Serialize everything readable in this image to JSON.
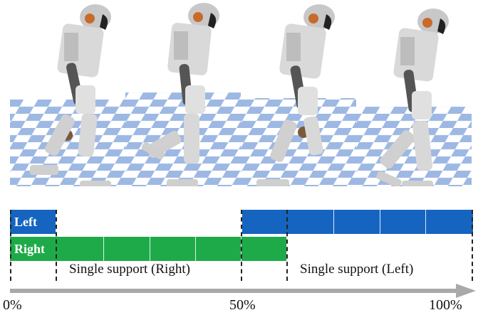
{
  "frames": [
    {
      "leg_pose": "left-lifted",
      "ground": "checker-blue-white"
    },
    {
      "leg_pose": "left-swing",
      "ground": "checker-blue-white"
    },
    {
      "leg_pose": "right-lifted",
      "ground": "checker-blue-white"
    },
    {
      "leg_pose": "right-swing",
      "ground": "checker-blue-white"
    }
  ],
  "gait_bars": {
    "left_label": "Left",
    "right_label": "Right",
    "left_color": "#1565c0",
    "right_color": "#1faa4a"
  },
  "phases": {
    "single_right": "Single support (Right)",
    "single_left": "Single support (Left)"
  },
  "axis": {
    "start": "0%",
    "mid": "50%",
    "end": "100%",
    "color": "#a9a9a9"
  }
}
